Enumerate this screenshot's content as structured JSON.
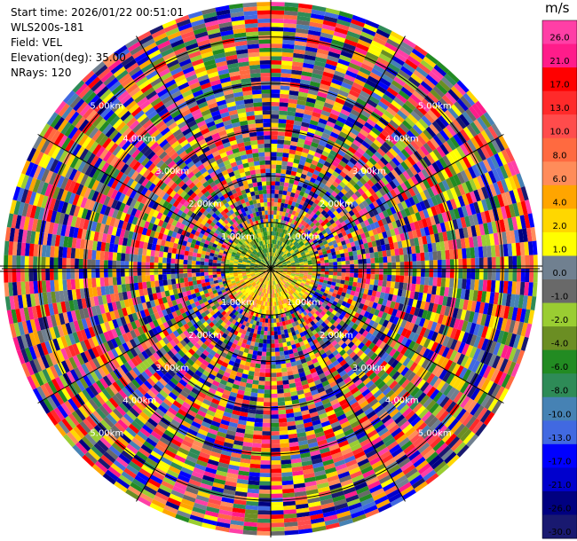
{
  "header": {
    "start_time": "Start time: 2026/01/22 00:51:01",
    "instrument": "WLS200s-181",
    "field": "Field: VEL",
    "elevation": "Elevation(deg): 35.00",
    "nrays": "NRays: 120"
  },
  "colorbar": {
    "unit": "m/s",
    "ticks": [
      "26.0",
      "21.0",
      "17.0",
      "13.0",
      "10.0",
      "8.0",
      "6.0",
      "4.0",
      "2.0",
      "1.0",
      "0.0",
      "-1.0",
      "-2.0",
      "-4.0",
      "-6.0",
      "-8.0",
      "-10.0",
      "-13.0",
      "-17.0",
      "-21.0",
      "-26.0",
      "-30.0"
    ],
    "colors": [
      "#ff3fa6",
      "#ff1c8a",
      "#ff0000",
      "#ff2a2a",
      "#ff4c4c",
      "#ff6a40",
      "#ff8c5a",
      "#ffa500",
      "#ffd700",
      "#ffff00",
      "#708090",
      "#696969",
      "#9acd32",
      "#6b8e23",
      "#228b22",
      "#2e8b57",
      "#4682b4",
      "#4169e1",
      "#0000ff",
      "#0000cd",
      "#000080",
      "#191970"
    ]
  },
  "chart_data": {
    "type": "heatmap",
    "subtype": "polar-ppi",
    "field": "VEL",
    "units": "m/s",
    "nrays": 120,
    "max_range_km": 5.8,
    "range_rings_km": [
      1,
      2,
      3,
      4,
      5
    ],
    "range_labels": [
      "1.00km",
      "2.00km",
      "3.00km",
      "4.00km",
      "5.00km"
    ],
    "color_range": [
      -30,
      26
    ]
  }
}
